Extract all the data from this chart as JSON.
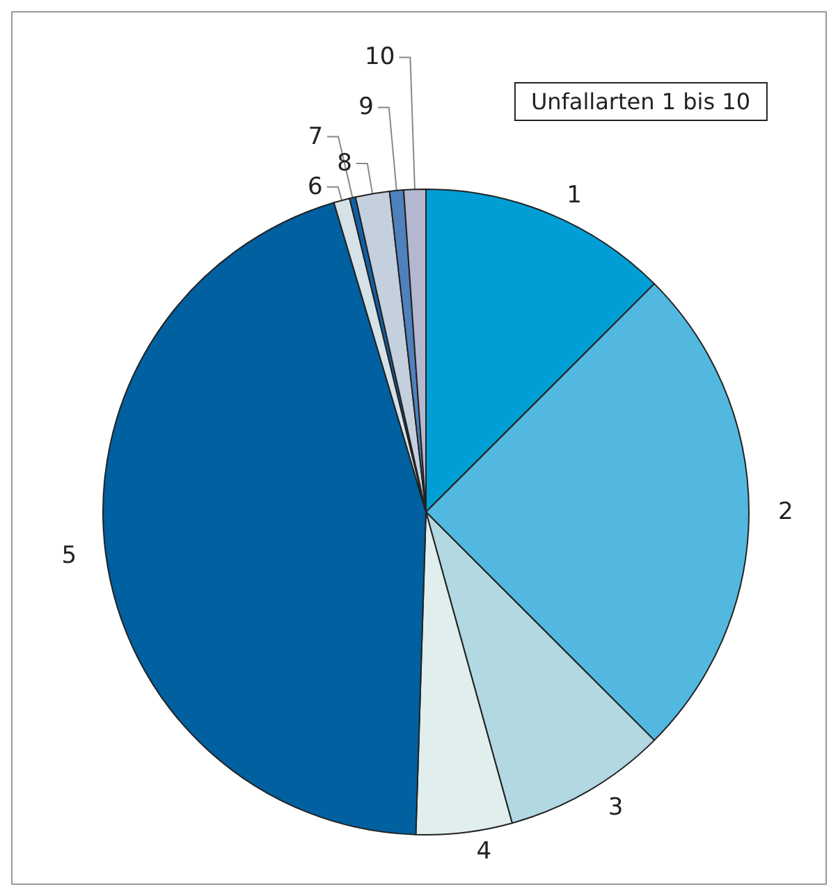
{
  "chart_data": {
    "type": "pie",
    "title": "Unfallarten 1 bis 10",
    "categories": [
      "1",
      "2",
      "3",
      "4",
      "5",
      "6",
      "7",
      "8",
      "9",
      "10"
    ],
    "values": [
      12.5,
      25,
      8.2,
      4.8,
      44.9,
      0.8,
      0.3,
      1.7,
      0.7,
      1.1
    ],
    "colors": [
      "#009ed5",
      "#52b8e0",
      "#b2d8e2",
      "#e0eeee",
      "#0060a0",
      "#d5e2e8",
      "#1060a8",
      "#c5d0de",
      "#4f81bd",
      "#b3b8d0"
    ],
    "legend": false
  }
}
